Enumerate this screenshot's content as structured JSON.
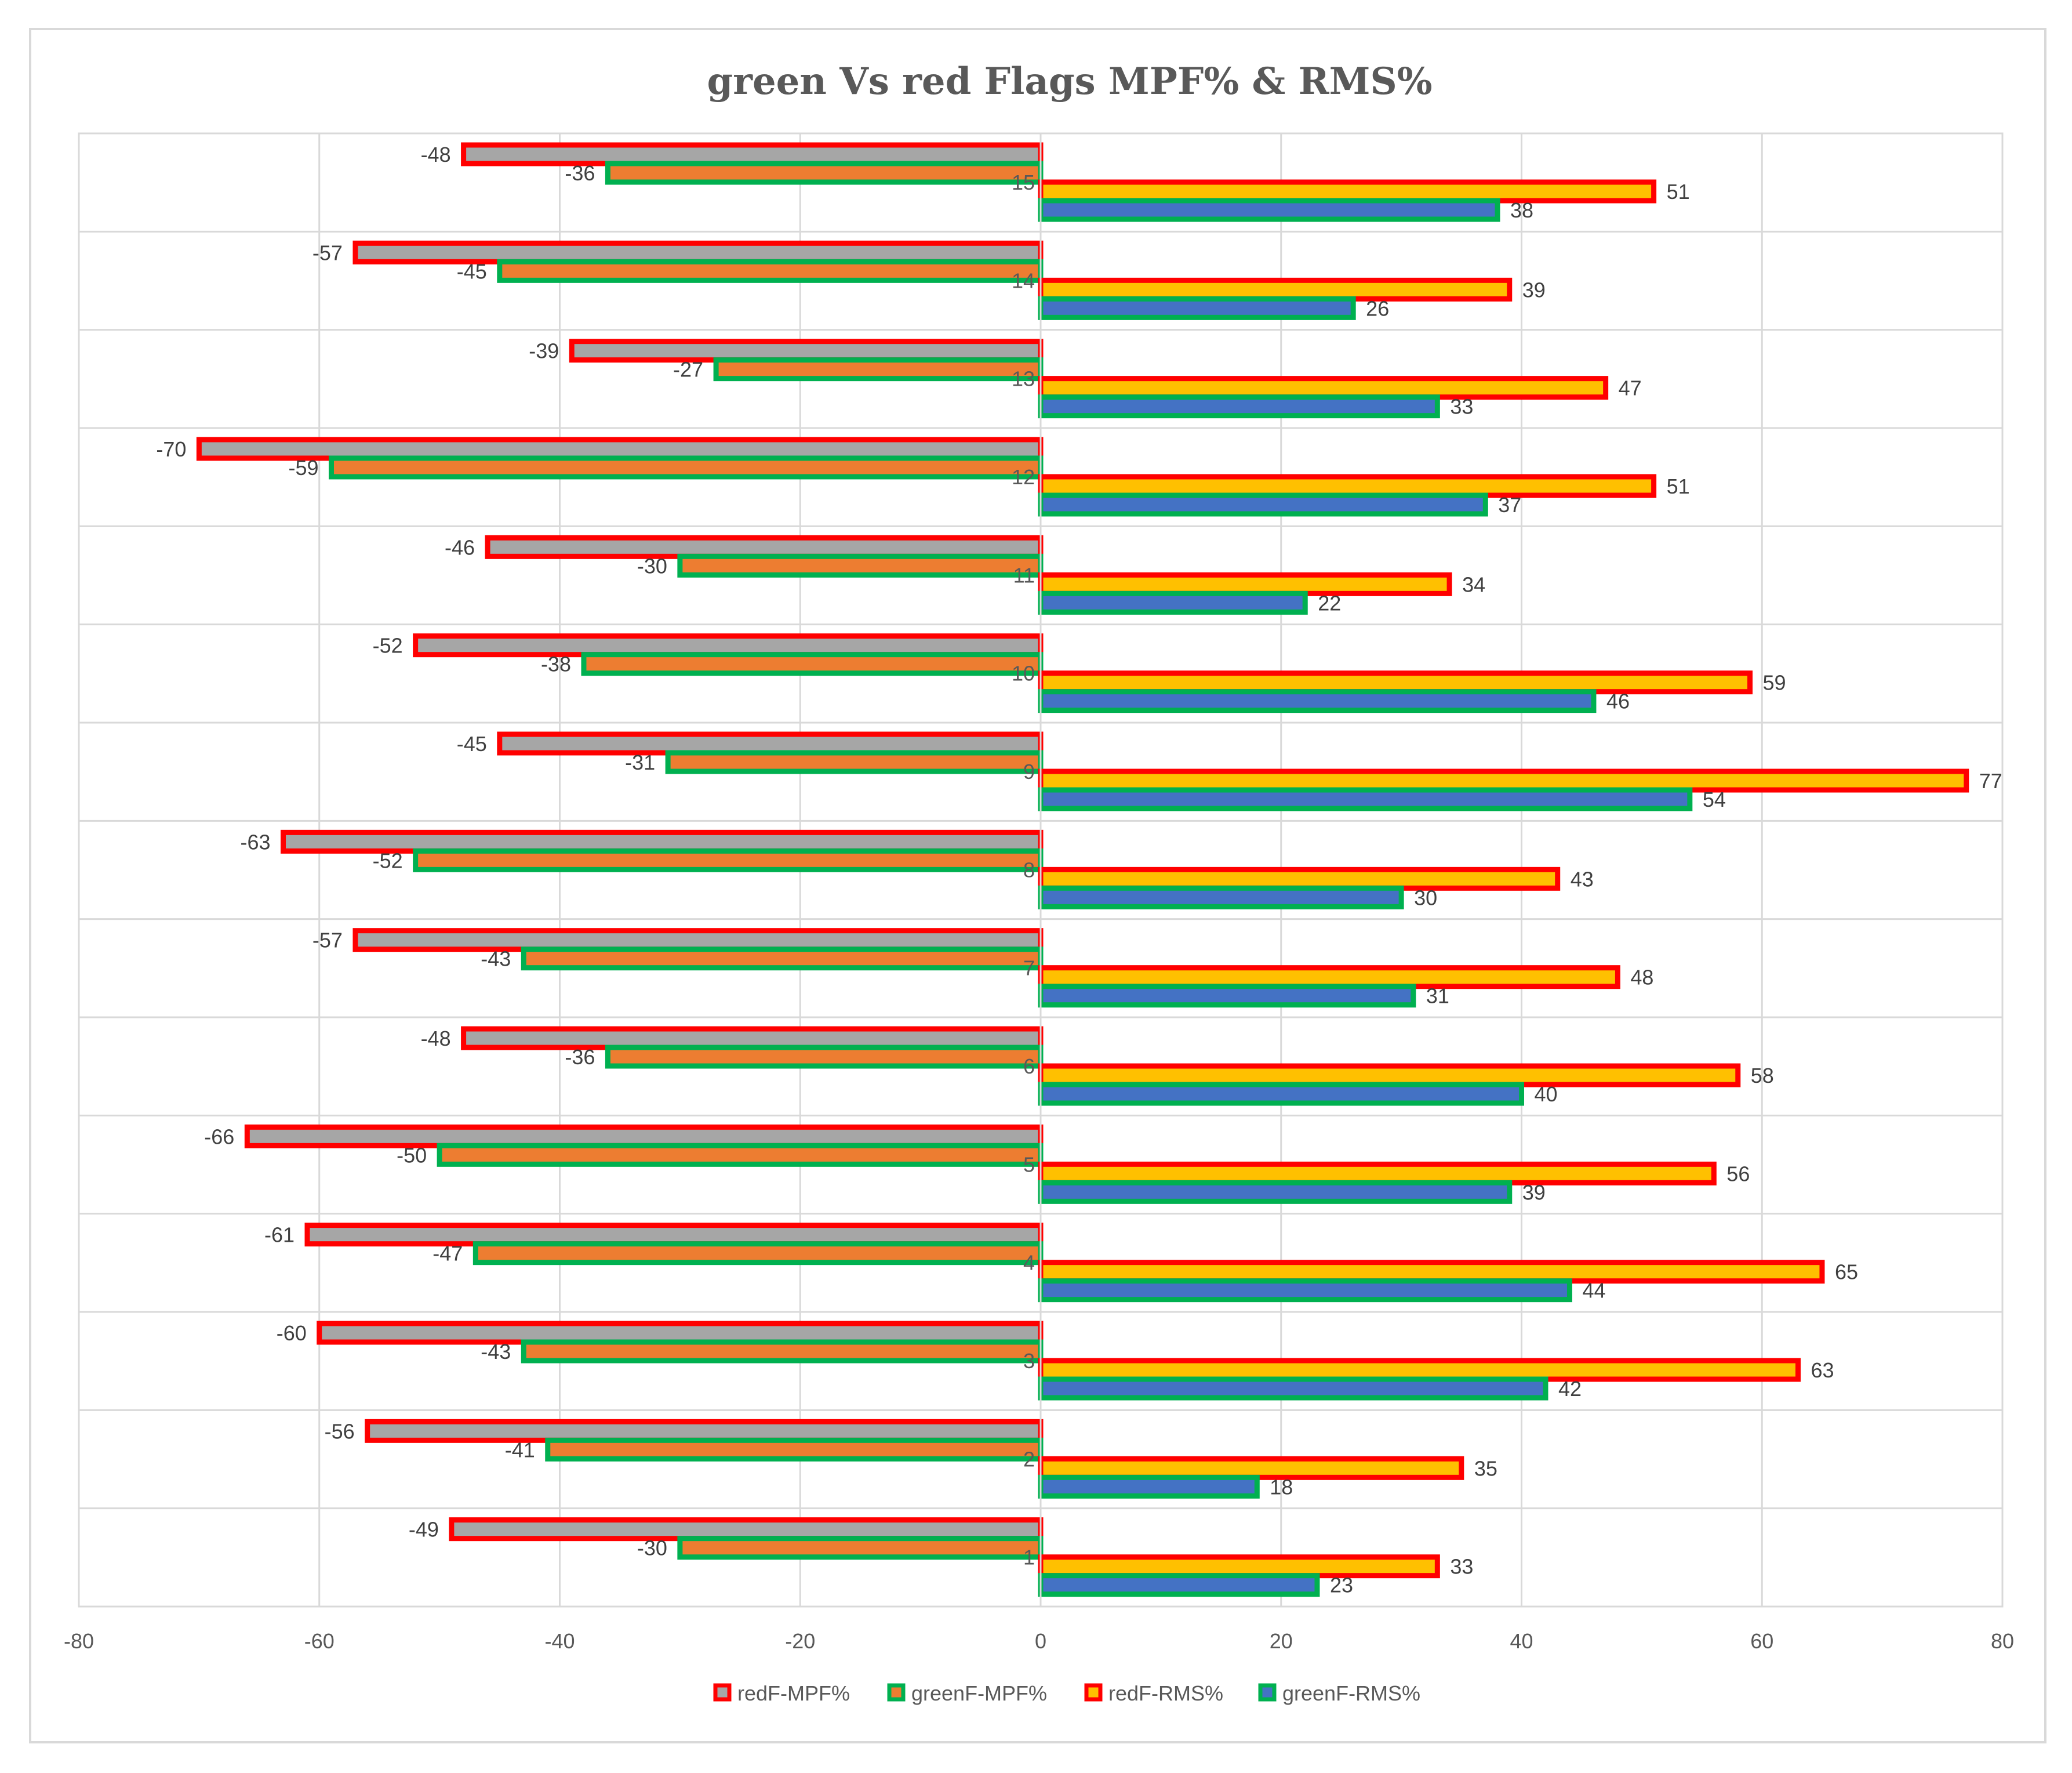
{
  "chart_data": {
    "type": "bar",
    "orientation": "horizontal",
    "title": "green Vs red Flags MPF% & RMS%",
    "categories": [
      "1",
      "2",
      "3",
      "4",
      "5",
      "6",
      "7",
      "8",
      "9",
      "10",
      "11",
      "12",
      "13",
      "14",
      "15"
    ],
    "series": [
      {
        "name": "redF-MPF%",
        "fill": "#a6a6a6",
        "stroke": "#ff0000",
        "values": [
          -49,
          -56,
          -60,
          -61,
          -66,
          -48,
          -57,
          -63,
          -45,
          -52,
          -46,
          -70,
          -39,
          -57,
          -48
        ]
      },
      {
        "name": "greenF-MPF%",
        "fill": "#ed7d31",
        "stroke": "#00b050",
        "values": [
          -30,
          -41,
          -43,
          -47,
          -50,
          -36,
          -43,
          -52,
          -31,
          -38,
          -30,
          -59,
          -27,
          -45,
          -36
        ]
      },
      {
        "name": "redF-RMS%",
        "fill": "#ffc000",
        "stroke": "#ff0000",
        "values": [
          33,
          35,
          63,
          65,
          56,
          58,
          48,
          43,
          77,
          59,
          34,
          51,
          47,
          39,
          51
        ]
      },
      {
        "name": "greenF-RMS%",
        "fill": "#4472c4",
        "stroke": "#00b050",
        "values": [
          23,
          18,
          42,
          44,
          39,
          40,
          31,
          30,
          54,
          46,
          22,
          37,
          33,
          26,
          38
        ]
      }
    ],
    "xlim": [
      -80,
      80
    ],
    "xticks": [
      "-80",
      "-60",
      "-40",
      "-20",
      "0",
      "20",
      "40",
      "60",
      "80"
    ],
    "grid": true,
    "legend_position": "bottom"
  }
}
